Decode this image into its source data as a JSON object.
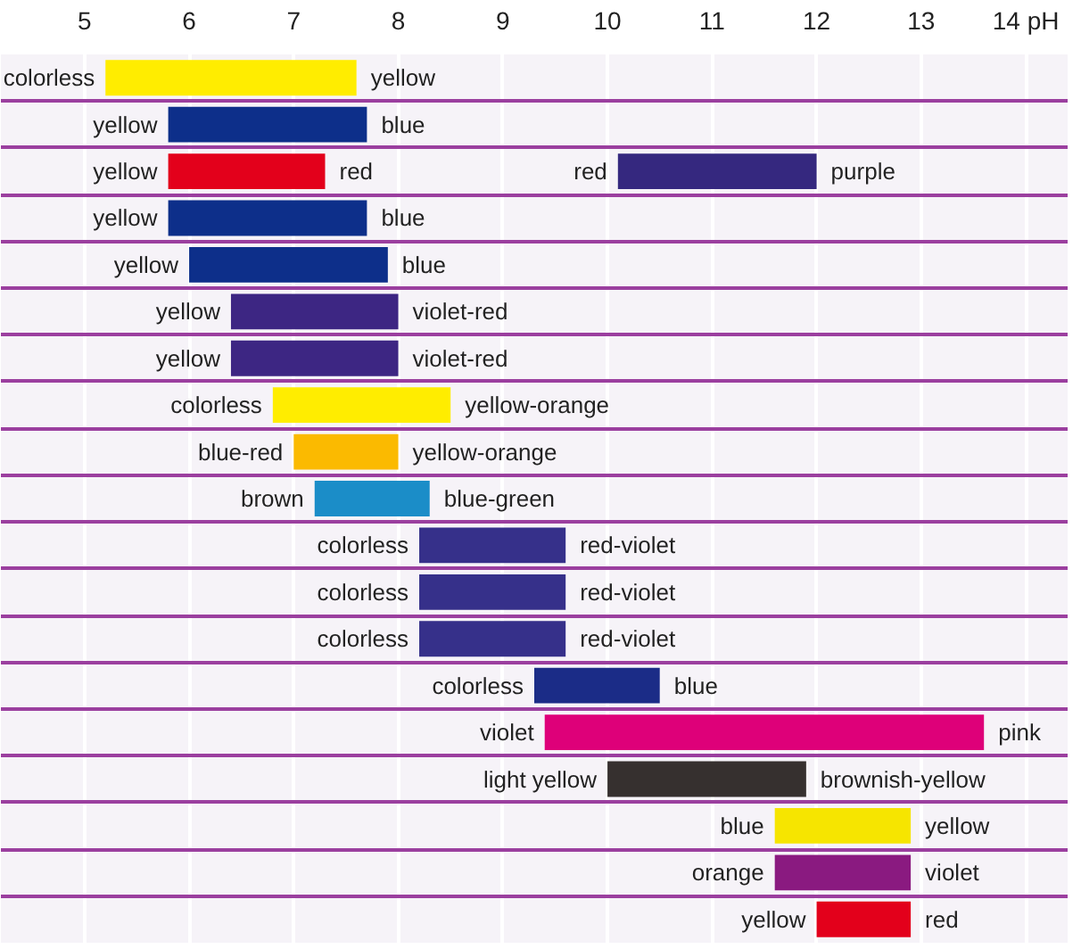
{
  "chart_data": {
    "type": "bar",
    "orientation": "horizontal",
    "grid": true,
    "tick_labels": "x",
    "categories": [
      null,
      null,
      null,
      null,
      null,
      null,
      null,
      null,
      null,
      null,
      null,
      null,
      null,
      null,
      null,
      null,
      null,
      null,
      null
    ],
    "xlim": [
      4.2,
      14.4
    ],
    "xticks": [
      5,
      6,
      7,
      8,
      9,
      10,
      11,
      12,
      13,
      {
        "value": 14,
        "label": "14 pH"
      }
    ],
    "series": [
      {
        "base": [
          5.2,
          5.8,
          5.8,
          5.8,
          6.0,
          6.4,
          6.4,
          6.8,
          7.0,
          7.2,
          8.2,
          8.2,
          8.2,
          9.3,
          9.4,
          10.0,
          11.6,
          11.6,
          12.0
        ],
        "values": [
          2.4,
          1.9,
          1.5,
          1.9,
          1.9,
          1.6,
          1.6,
          1.7,
          1.0,
          1.1,
          1.4,
          1.4,
          1.4,
          1.2,
          4.2,
          1.9,
          1.3,
          1.3,
          0.9
        ],
        "colors": [
          "#ffed00",
          "#0d2f8a",
          "#e3001b",
          "#0d2f8a",
          "#0d2f8a",
          "#3d2683",
          "#3d2683",
          "#ffed00",
          "#fbba00",
          "#1b8dc8",
          "#36308a",
          "#36308a",
          "#36308a",
          "#1b2c87",
          "#de0079",
          "#36302f",
          "#f6e500",
          "#8a1a80",
          "#e3001b"
        ]
      },
      {
        "base": [
          null,
          null,
          10.1,
          null,
          null,
          null,
          null,
          null,
          null,
          null,
          null,
          null,
          null,
          null,
          null,
          null,
          null,
          null,
          null
        ],
        "values": [
          null,
          null,
          1.9,
          null,
          null,
          null,
          null,
          null,
          null,
          null,
          null,
          null,
          null,
          null,
          null,
          null,
          null,
          null,
          null
        ],
        "colors": [
          null,
          null,
          "#35287f",
          null,
          null,
          null,
          null,
          null,
          null,
          null,
          null,
          null,
          null,
          null,
          null,
          null,
          null,
          null,
          null
        ]
      }
    ],
    "annotations": [
      {
        "text": "colorless",
        "x": 5.2
      },
      {
        "text": "yellow",
        "x": 7.6
      },
      {
        "text": "yellow",
        "x": 5.8
      },
      {
        "text": "blue",
        "x": 7.7
      },
      {
        "text": "yellow",
        "x": 5.8
      },
      {
        "text": "red",
        "x": 7.3
      },
      {
        "text": "red",
        "x": 10.1
      },
      {
        "text": "purple",
        "x": 12.0
      },
      {
        "text": "yellow",
        "x": 5.8
      },
      {
        "text": "blue",
        "x": 7.7
      },
      {
        "text": "yellow",
        "x": 6.0
      },
      {
        "text": "blue",
        "x": 7.9
      },
      {
        "text": "yellow",
        "x": 6.4
      },
      {
        "text": "violet-red",
        "x": 8.0
      },
      {
        "text": "yellow",
        "x": 6.4
      },
      {
        "text": "violet-red",
        "x": 8.0
      },
      {
        "text": "colorless",
        "x": 6.8
      },
      {
        "text": "yellow-orange",
        "x": 8.5
      },
      {
        "text": "blue-red",
        "x": 7.0
      },
      {
        "text": "yellow-orange",
        "x": 8.0
      },
      {
        "text": "brown",
        "x": 7.2
      },
      {
        "text": "blue-green",
        "x": 8.3
      },
      {
        "text": "colorless",
        "x": 8.2
      },
      {
        "text": "red-violet",
        "x": 9.6
      },
      {
        "text": "colorless",
        "x": 8.2
      },
      {
        "text": "red-violet",
        "x": 9.6
      },
      {
        "text": "colorless",
        "x": 8.2
      },
      {
        "text": "red-violet",
        "x": 9.6
      },
      {
        "text": "colorless",
        "x": 9.3
      },
      {
        "text": "blue",
        "x": 10.5
      },
      {
        "text": "violet",
        "x": 9.4
      },
      {
        "text": "pink",
        "x": 13.6
      },
      {
        "text": "light yellow",
        "x": 10.0
      },
      {
        "text": "brownish-yellow",
        "x": 11.9
      },
      {
        "text": "blue",
        "x": 11.6
      },
      {
        "text": "yellow",
        "x": 12.9
      },
      {
        "text": "orange",
        "x": 11.6
      },
      {
        "text": "violet",
        "x": 12.9
      },
      {
        "text": "yellow",
        "x": 12.0
      },
      {
        "text": "red",
        "x": 12.9
      }
    ]
  }
}
